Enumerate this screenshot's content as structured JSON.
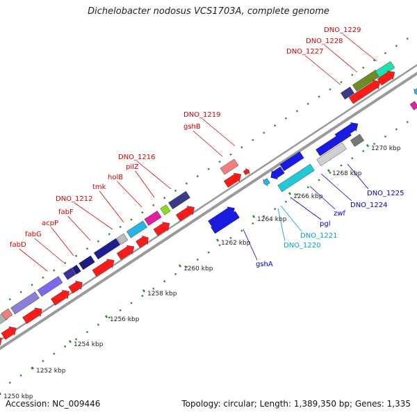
{
  "title": "Dichelobacter nodosus VCS1703A, complete genome",
  "footer": {
    "accession": "Accession: NC_009446",
    "summary": "Topology: circular; Length: 1,389,350 bp; Genes: 1,335"
  },
  "scale_ticks": [
    {
      "label": "1250 kbp",
      "kbp": 1250
    },
    {
      "label": "1252 kbp",
      "kbp": 1252
    },
    {
      "label": "1254 kbp",
      "kbp": 1254
    },
    {
      "label": "1256 kbp",
      "kbp": 1256
    },
    {
      "label": "1258 kbp",
      "kbp": 1258
    },
    {
      "label": "1260 kbp",
      "kbp": 1260
    },
    {
      "label": "1262 kbp",
      "kbp": 1262
    },
    {
      "label": "1264 kbp",
      "kbp": 1264
    },
    {
      "label": "1266 kbp",
      "kbp": 1266
    },
    {
      "label": "1268 kbp",
      "kbp": 1268
    },
    {
      "label": "1270 kbp",
      "kbp": 1270
    }
  ],
  "gene_labels_forward": [
    "fabD",
    "fabG",
    "acpP",
    "fabF",
    "DNO_1212",
    "tmk",
    "holB",
    "pilZ",
    "DNO_1216",
    "gshB",
    "DNO_1219",
    "DNO_1227",
    "DNO_1228",
    "DNO_1229"
  ],
  "gene_labels_reverse": [
    "gshA",
    "DNO_1220",
    "DNO_1221",
    "pgl",
    "zwf",
    "DNO_1224",
    "DNO_1225"
  ],
  "colors": {
    "forward_label": "#d40000",
    "reverse_label": "#0000cc",
    "reverse_label_cyan": "#00a0c8",
    "cds_red": "#ff1a1a",
    "cds_blue": "#1a1ae6",
    "backbone": "#888888",
    "tick": "#2e8b2e"
  }
}
